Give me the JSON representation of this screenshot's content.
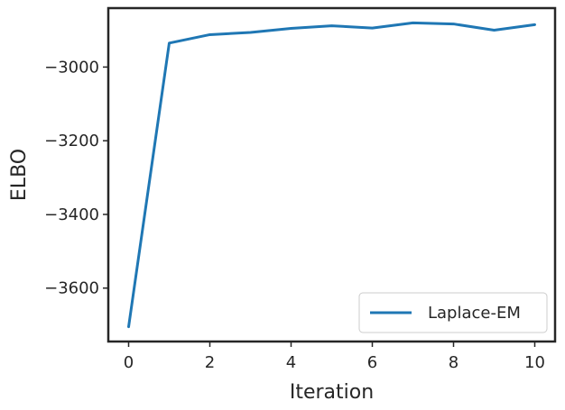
{
  "chart_data": {
    "type": "line",
    "xlabel": "Iteration",
    "ylabel": "ELBO",
    "xlim": [
      -0.5,
      10.5
    ],
    "ylim": [
      -3745,
      -2840
    ],
    "xticks": [
      0,
      2,
      4,
      6,
      8,
      10
    ],
    "yticks": [
      -3600,
      -3400,
      -3200,
      -3000
    ],
    "ytick_labels": [
      "−3600",
      "−3400",
      "−3200",
      "−3000"
    ],
    "grid": false,
    "legend_position": "lower-right",
    "series": [
      {
        "name": "Laplace-EM",
        "color": "#1f77b4",
        "x": [
          0,
          1,
          2,
          3,
          4,
          5,
          6,
          7,
          8,
          9,
          10
        ],
        "y": [
          -3705,
          -2935,
          -2912,
          -2906,
          -2895,
          -2888,
          -2894,
          -2880,
          -2883,
          -2900,
          -2885
        ]
      }
    ]
  }
}
